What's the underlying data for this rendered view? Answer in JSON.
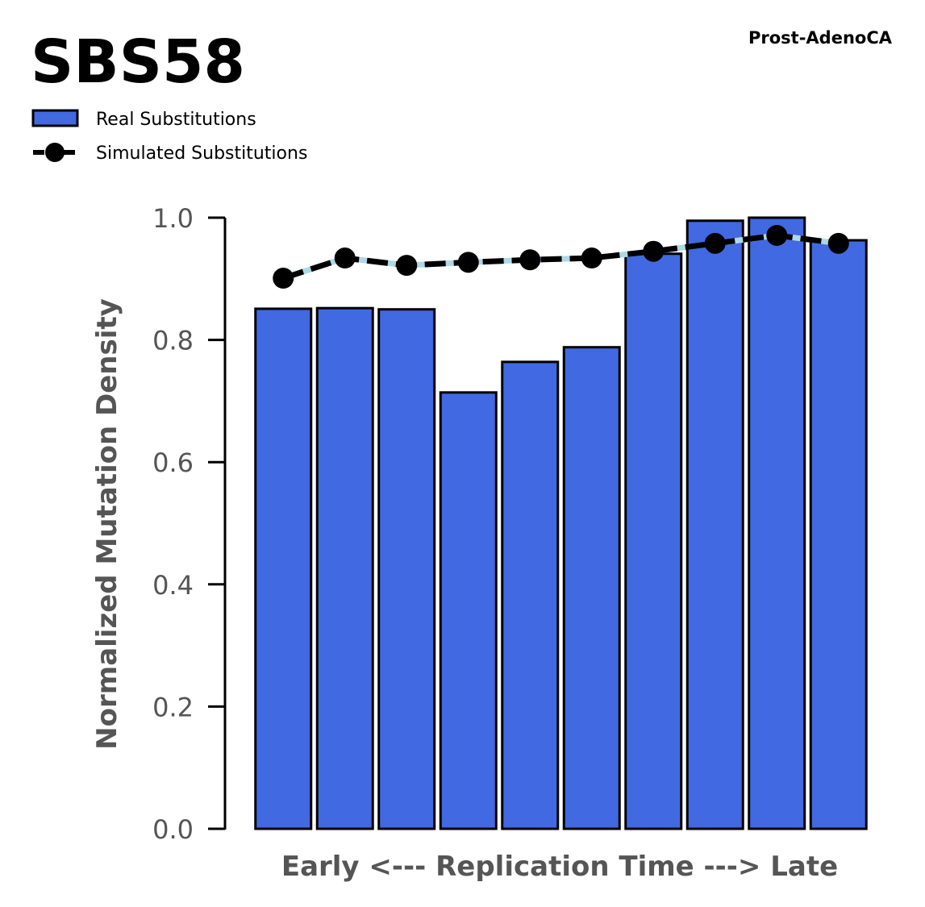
{
  "chart_data": {
    "type": "bar",
    "title": "SBS58",
    "subtitle": "Prost-AdenoCA",
    "xlabel": "Early <--- Replication Time ---> Late",
    "ylabel": "Normalized Mutation Density",
    "ylim": [
      0,
      1.0
    ],
    "yticks": [
      "0.0",
      "0.2",
      "0.4",
      "0.6",
      "0.8",
      "1.0"
    ],
    "ytick_values": [
      0,
      0.2,
      0.4,
      0.6,
      0.8,
      1.0
    ],
    "grid": false,
    "legend_placement": "top-left",
    "categories": [
      1,
      2,
      3,
      4,
      5,
      6,
      7,
      8,
      9,
      10
    ],
    "series": [
      {
        "name": "Real Substitutions",
        "kind": "bar",
        "color": "#4169e1",
        "values": [
          0.851,
          0.852,
          0.85,
          0.714,
          0.764,
          0.788,
          0.941,
          0.995,
          1.0,
          0.963
        ]
      },
      {
        "name": "Simulated Substitutions",
        "kind": "line",
        "color": "#000000",
        "dash_color": "#add8e6",
        "values": [
          0.901,
          0.934,
          0.922,
          0.927,
          0.931,
          0.934,
          0.945,
          0.958,
          0.971,
          0.958
        ]
      }
    ]
  }
}
